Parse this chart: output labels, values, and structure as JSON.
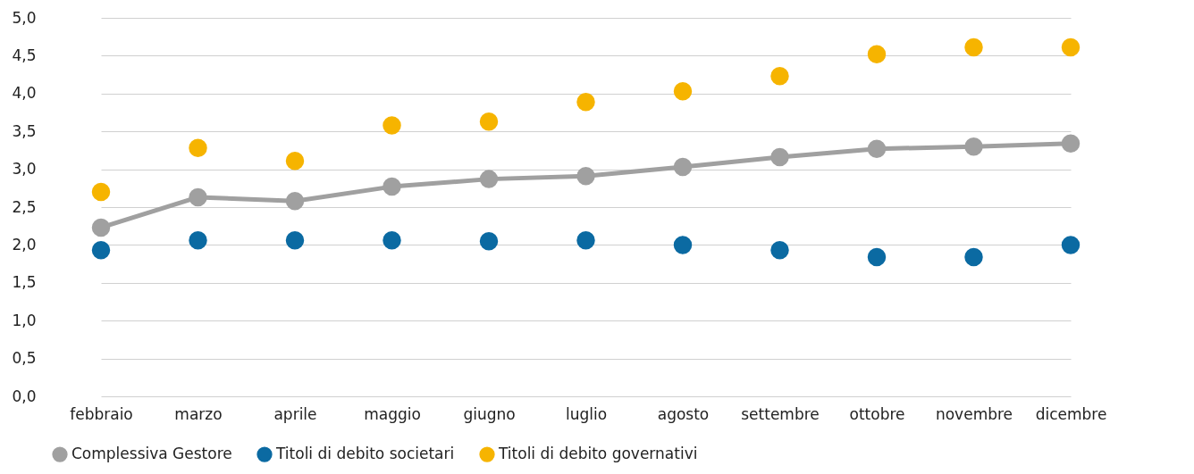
{
  "chart_data": {
    "type": "line",
    "categories": [
      "febbraio",
      "marzo",
      "aprile",
      "maggio",
      "giugno",
      "luglio",
      "agosto",
      "settembre",
      "ottobre",
      "novembre",
      "dicembre"
    ],
    "series": [
      {
        "name": "Complessiva Gestore",
        "color": "#a0a0a0",
        "marker": "circle",
        "values": [
          2.23,
          2.63,
          2.58,
          2.77,
          2.87,
          2.91,
          3.03,
          3.16,
          3.27,
          3.3,
          3.34
        ]
      },
      {
        "name": "Titoli di debito societari",
        "type": "scatter",
        "color": "#0b6aa2",
        "marker": "circle",
        "values": [
          1.93,
          2.06,
          2.06,
          2.06,
          2.05,
          2.06,
          2.0,
          1.93,
          1.84,
          1.84,
          2.0
        ]
      },
      {
        "name": "Titoli di debito governativi",
        "type": "scatter",
        "color": "#f6b400",
        "marker": "circle",
        "values": [
          2.7,
          3.28,
          3.11,
          3.58,
          3.63,
          3.89,
          4.03,
          4.23,
          4.52,
          4.61,
          4.61
        ]
      }
    ],
    "ylim": [
      0,
      5
    ],
    "yticks": [
      {
        "value": 0,
        "label": "0,0"
      },
      {
        "value": 0.5,
        "label": "0,5"
      },
      {
        "value": 1,
        "label": "1,0"
      },
      {
        "value": 1.5,
        "label": "1,5"
      },
      {
        "value": 2,
        "label": "2,0"
      },
      {
        "value": 2.5,
        "label": "2,5"
      },
      {
        "value": 3,
        "label": "3,0"
      },
      {
        "value": 3.5,
        "label": "3,5"
      },
      {
        "value": 4,
        "label": "4,0"
      },
      {
        "value": 4.5,
        "label": "4,5"
      },
      {
        "value": 5,
        "label": "5,0"
      }
    ],
    "grid": "y",
    "legend": "bottom left"
  }
}
